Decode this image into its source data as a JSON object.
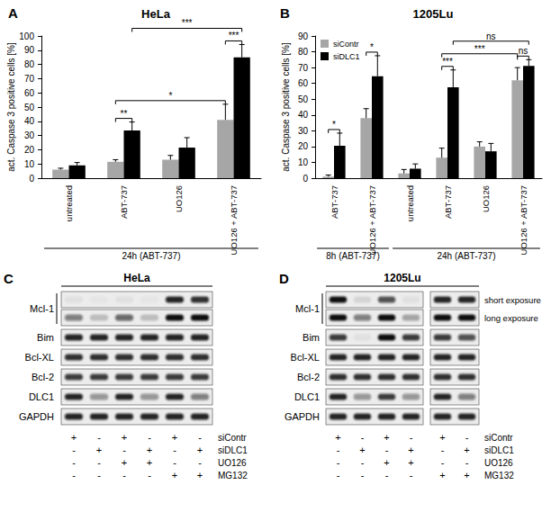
{
  "chart_data": [
    {
      "type": "bar",
      "panel": "A",
      "title": "HeLa",
      "y_label": "act. Caspase 3 positive cells [%]",
      "categories": [
        "untreated",
        "ABT-737",
        "UO126",
        "UO126 + ABT-737"
      ],
      "series": [
        {
          "color": "#a6a6a6",
          "values": [
            6,
            11.5,
            13,
            41
          ],
          "errors": [
            1,
            1.5,
            3,
            11
          ]
        },
        {
          "color": "#000000",
          "values": [
            9,
            33.5,
            21.5,
            85
          ],
          "errors": [
            2,
            6,
            7,
            9
          ]
        }
      ],
      "ylim": [
        0,
        100
      ],
      "yticks": [
        0,
        10,
        20,
        30,
        40,
        50,
        60,
        70,
        80,
        90,
        100
      ],
      "grid": false,
      "annotations": [
        {
          "label": "**",
          "from": [
            1,
            0
          ],
          "to": [
            1,
            1
          ]
        },
        {
          "label": "***",
          "from": [
            3,
            0
          ],
          "to": [
            3,
            1
          ]
        },
        {
          "label": "*",
          "from": [
            1,
            0
          ],
          "to": [
            3,
            0
          ]
        },
        {
          "label": "***",
          "from": [
            1,
            1
          ],
          "to": [
            3,
            1
          ]
        }
      ],
      "groups": [
        {
          "label": "24h (ABT-737)",
          "from": 0,
          "to": 3
        }
      ]
    },
    {
      "type": "bar",
      "panel": "B",
      "title": "1205Lu",
      "y_label": "act. Caspase 3 positive cells [%]",
      "categories": [
        "ABT-737",
        "UO126 + ABT-737",
        "untreated",
        "ABT-737",
        "UO126",
        "UO126 + ABT-737"
      ],
      "series": [
        {
          "name": "siContr",
          "color": "#a6a6a6",
          "values": [
            1,
            38,
            3,
            13,
            20,
            62
          ],
          "errors": [
            1,
            6,
            2.5,
            6,
            3,
            8
          ]
        },
        {
          "name": "siDLC1",
          "color": "#000000",
          "values": [
            20.5,
            64.5,
            6,
            57.5,
            17,
            71
          ],
          "errors": [
            8,
            13,
            3,
            11,
            5,
            4
          ]
        }
      ],
      "ylim": [
        0,
        90
      ],
      "yticks": [
        0,
        10,
        20,
        30,
        40,
        50,
        60,
        70,
        80,
        90
      ],
      "grid": false,
      "legend": "upper left",
      "annotations": [
        {
          "label": "*",
          "from": [
            0,
            0
          ],
          "to": [
            0,
            1
          ]
        },
        {
          "label": "*",
          "from": [
            1,
            0
          ],
          "to": [
            1,
            1
          ]
        },
        {
          "label": "***",
          "from": [
            3,
            0
          ],
          "to": [
            3,
            1
          ]
        },
        {
          "label": "ns",
          "from": [
            5,
            0
          ],
          "to": [
            5,
            1
          ]
        },
        {
          "label": "***",
          "from": [
            3,
            0
          ],
          "to": [
            5,
            0
          ]
        },
        {
          "label": "ns",
          "from": [
            3,
            1
          ],
          "to": [
            5,
            1
          ]
        }
      ],
      "groups": [
        {
          "label": "8h (ABT-737)",
          "from": 0,
          "to": 1
        },
        {
          "label": "24h (ABT-737)",
          "from": 2,
          "to": 5
        }
      ]
    }
  ],
  "blots": [
    {
      "panel": "C",
      "title": "HeLa",
      "lane_groups": [
        6
      ],
      "rows": [
        {
          "label": "Mcl-1",
          "strips": [
            {
              "intensity": [
                0.05,
                0.03,
                0.05,
                0.03,
                0.9,
                0.85
              ]
            },
            {
              "intensity": [
                0.5,
                0.2,
                0.6,
                0.2,
                1,
                1
              ]
            }
          ]
        },
        {
          "label": "Bim",
          "strips": [
            {
              "intensity": [
                0.9,
                0.9,
                0.9,
                0.9,
                0.9,
                0.9
              ]
            }
          ]
        },
        {
          "label": "Bcl-XL",
          "strips": [
            {
              "intensity": [
                0.85,
                0.85,
                0.85,
                0.85,
                0.85,
                0.85
              ]
            }
          ]
        },
        {
          "label": "Bcl-2",
          "strips": [
            {
              "intensity": [
                0.8,
                0.8,
                0.8,
                0.8,
                0.8,
                0.8
              ]
            }
          ]
        },
        {
          "label": "DLC1",
          "strips": [
            {
              "intensity": [
                0.9,
                0.4,
                0.9,
                0.4,
                0.9,
                0.5
              ]
            }
          ]
        },
        {
          "label": "GAPDH",
          "strips": [
            {
              "intensity": [
                0.9,
                0.9,
                0.9,
                0.9,
                0.9,
                0.9
              ]
            }
          ]
        }
      ],
      "treatments": [
        {
          "label": "siContr",
          "signs": [
            "+",
            "-",
            "+",
            "-",
            "+",
            "-"
          ]
        },
        {
          "label": "siDLC1",
          "signs": [
            "-",
            "+",
            "-",
            "+",
            "-",
            "+"
          ]
        },
        {
          "label": "UO126",
          "signs": [
            "-",
            "-",
            "+",
            "+",
            "-",
            "-"
          ]
        },
        {
          "label": "MG132",
          "signs": [
            "-",
            "-",
            "-",
            "-",
            "+",
            "+"
          ]
        }
      ]
    },
    {
      "panel": "D",
      "title": "1205Lu",
      "lane_groups": [
        4,
        2
      ],
      "rows": [
        {
          "label": "Mcl-1",
          "strips": [
            {
              "intensity": [
                1,
                0.1,
                0.7,
                0.05,
                0.9,
                0.9
              ],
              "note": "short exposure"
            },
            {
              "intensity": [
                1,
                0.5,
                1,
                0.3,
                1,
                1
              ],
              "note": "long exposure"
            }
          ]
        },
        {
          "label": "Bim",
          "strips": [
            {
              "intensity": [
                0.8,
                0.05,
                1,
                0.8,
                0.8,
                0.7
              ]
            }
          ]
        },
        {
          "label": "Bcl-XL",
          "strips": [
            {
              "intensity": [
                0.9,
                0.9,
                0.9,
                0.9,
                0.9,
                0.9
              ]
            }
          ]
        },
        {
          "label": "Bcl-2",
          "strips": [
            {
              "intensity": [
                0.85,
                0.85,
                0.85,
                0.85,
                0.85,
                0.85
              ]
            }
          ]
        },
        {
          "label": "DLC1",
          "strips": [
            {
              "intensity": [
                0.9,
                0.4,
                0.8,
                0.4,
                0.9,
                0.5
              ]
            }
          ]
        },
        {
          "label": "GAPDH",
          "strips": [
            {
              "intensity": [
                0.9,
                0.9,
                0.9,
                0.9,
                0.9,
                0.9
              ]
            }
          ]
        }
      ],
      "treatments": [
        {
          "label": "siContr",
          "signs": [
            "+",
            "-",
            "+",
            "-",
            "+",
            "-"
          ]
        },
        {
          "label": "siDLC1",
          "signs": [
            "-",
            "+",
            "-",
            "+",
            "-",
            "+"
          ]
        },
        {
          "label": "UO126",
          "signs": [
            "-",
            "-",
            "+",
            "+",
            "-",
            "-"
          ]
        },
        {
          "label": "MG132",
          "signs": [
            "-",
            "-",
            "-",
            "-",
            "+",
            "+"
          ]
        }
      ]
    }
  ]
}
